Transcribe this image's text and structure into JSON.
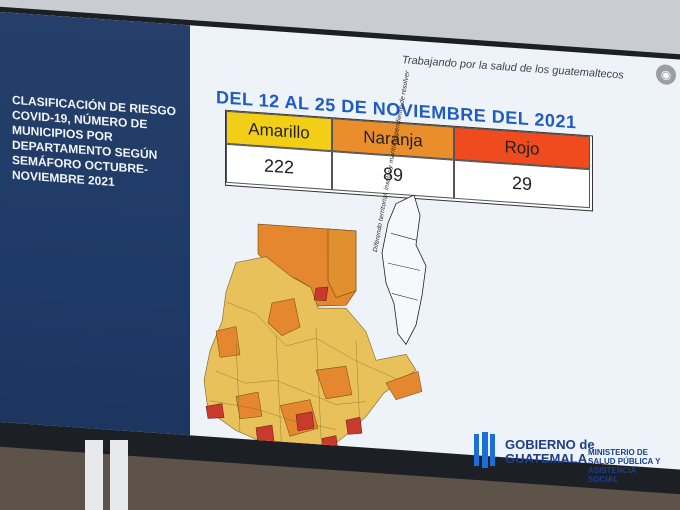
{
  "tagline": "Trabajando por la salud de los guatemaltecos",
  "left_title": "CLASIFICACIÓN DE RIESGO COVID-19, NÚMERO DE MUNICIPIOS POR DEPARTAMENTO SEGÚN SEMÁFORO OCTUBRE-NOVIEMBRE 2021",
  "date_title": "DEL 12 AL 25 DE NOVIEMBRE DEL 2021",
  "table": {
    "headers": [
      "Amarillo",
      "Naranja",
      "Rojo"
    ],
    "values": [
      "222",
      "89",
      "29"
    ]
  },
  "colors": {
    "amarillo": "#f2cf16",
    "naranja": "#ea8e2b",
    "rojo": "#f04a1f",
    "map_yellow": "#e8c15b",
    "map_orange": "#e4872f",
    "map_red": "#c93a2d",
    "panel_blue": "#1f3a66"
  },
  "map_note": "Diferendo territorial, insular y marítimo pendiente de resolver",
  "logo": {
    "line1": "GOBIERNO de",
    "line2": "GUATEMALA",
    "ministry": "MINISTERIO DE SALUD PÚBLICA Y ASISTENCIA SOCIAL"
  },
  "icons": [
    "globe-icon",
    "government-logo-icon"
  ]
}
